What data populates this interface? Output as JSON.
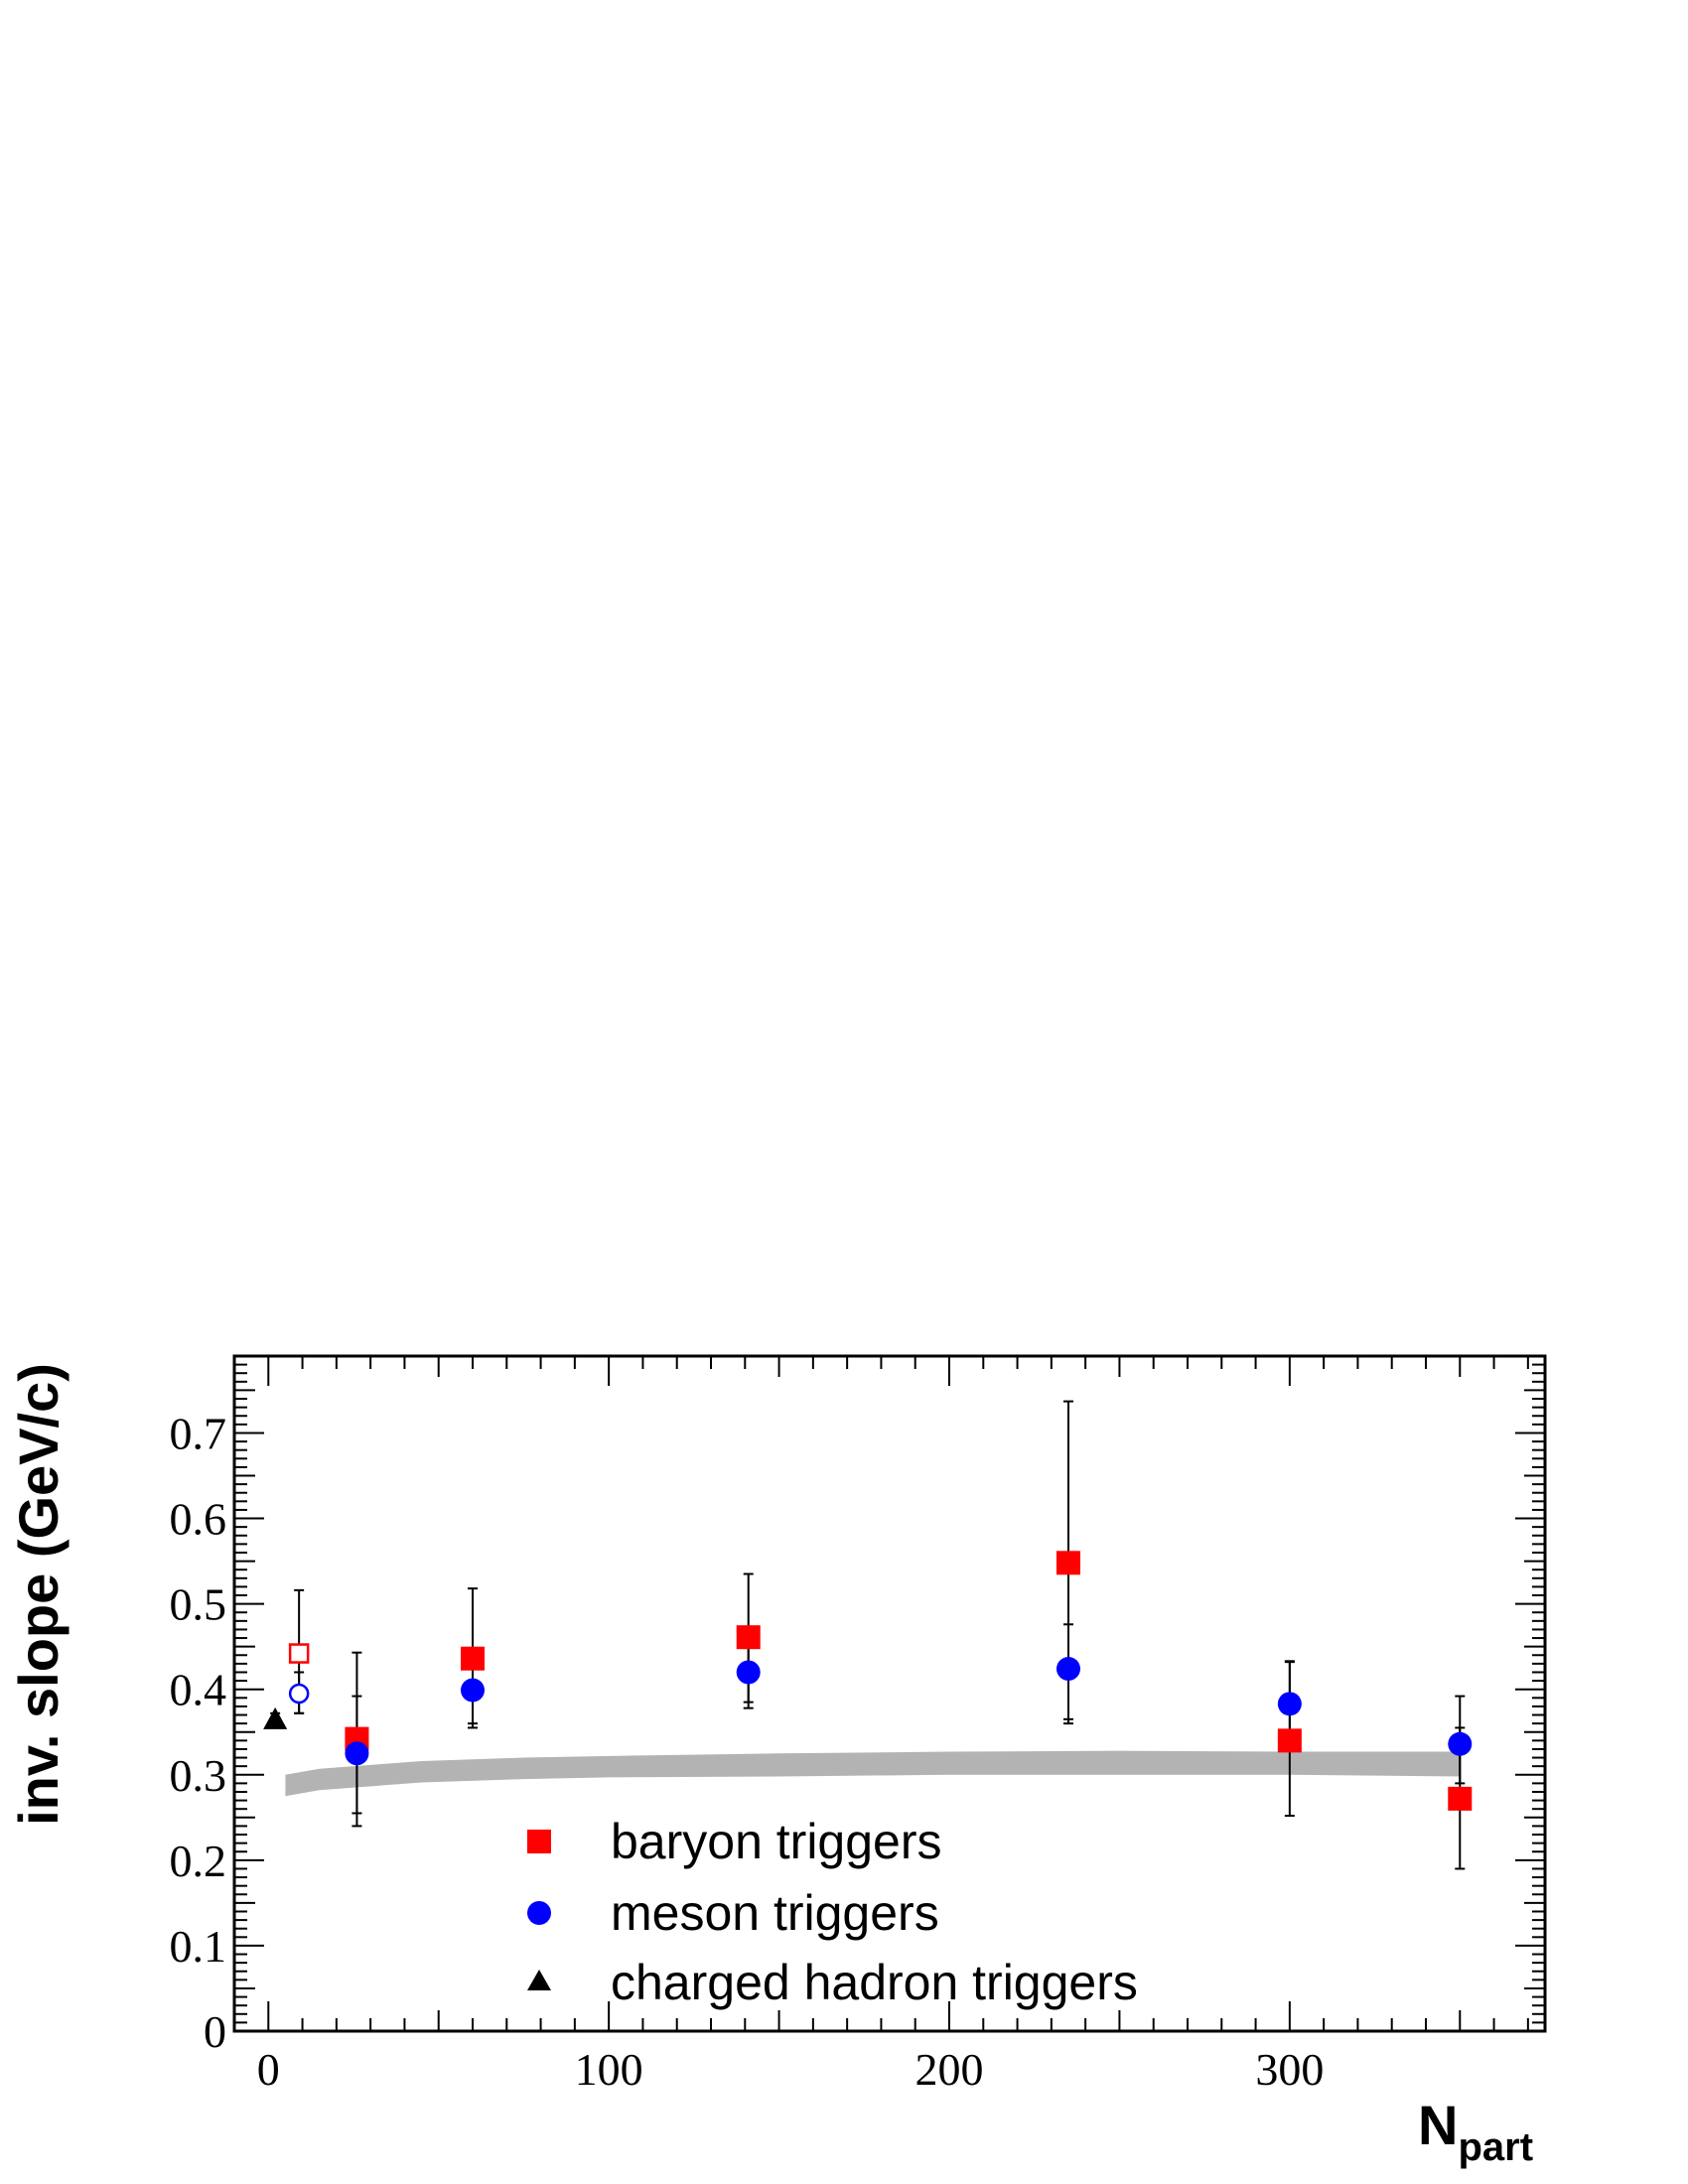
{
  "chart_data": {
    "type": "scatter",
    "title": "",
    "xlabel": "N",
    "xlabel_sub": "part",
    "ylabel": "inv. slope (GeV/c)",
    "xlim": [
      -10,
      375
    ],
    "ylim": [
      0,
      0.79
    ],
    "x_ticks": [
      0,
      100,
      200,
      300
    ],
    "y_ticks": [
      0,
      0.1,
      0.2,
      0.3,
      0.4,
      0.5,
      0.6,
      0.7
    ],
    "y_tick_labels": [
      "0",
      "0.1",
      "0.2",
      "0.3",
      "0.4",
      "0.5",
      "0.6",
      "0.7"
    ],
    "grid": false,
    "legend_position": "bottom-center",
    "colors": {
      "baryon": "#ff0000",
      "meson": "#0000ff",
      "charged": "#000000",
      "band": "#b3b3b3"
    },
    "band": {
      "x": [
        5,
        15,
        45,
        75,
        100,
        150,
        200,
        250,
        300,
        350
      ],
      "lower": [
        0.275,
        0.282,
        0.291,
        0.295,
        0.297,
        0.298,
        0.3,
        0.3,
        0.3,
        0.298
      ],
      "upper": [
        0.3,
        0.307,
        0.316,
        0.32,
        0.322,
        0.325,
        0.327,
        0.328,
        0.327,
        0.327
      ]
    },
    "series": [
      {
        "name": "baryon triggers",
        "marker": "square",
        "points": [
          {
            "x": 26,
            "y": 0.342,
            "lo": 0.255,
            "hi": 0.443
          },
          {
            "x": 60,
            "y": 0.436,
            "lo": 0.36,
            "hi": 0.518
          },
          {
            "x": 141,
            "y": 0.461,
            "lo": 0.385,
            "hi": 0.535
          },
          {
            "x": 235,
            "y": 0.548,
            "lo": 0.365,
            "hi": 0.737
          },
          {
            "x": 300,
            "y": 0.34,
            "lo": 0.252,
            "hi": 0.432
          },
          {
            "x": 350,
            "y": 0.272,
            "lo": 0.19,
            "hi": 0.355
          }
        ]
      },
      {
        "name": "meson triggers",
        "marker": "circle",
        "points": [
          {
            "x": 26,
            "y": 0.325,
            "lo": 0.24,
            "hi": 0.392
          },
          {
            "x": 60,
            "y": 0.399,
            "lo": 0.355,
            "hi": 0.433
          },
          {
            "x": 141,
            "y": 0.42,
            "lo": 0.378,
            "hi": 0.453
          },
          {
            "x": 235,
            "y": 0.424,
            "lo": 0.36,
            "hi": 0.476
          },
          {
            "x": 300,
            "y": 0.383,
            "lo": 0.34,
            "hi": 0.433
          },
          {
            "x": 350,
            "y": 0.336,
            "lo": 0.29,
            "hi": 0.392
          }
        ]
      },
      {
        "name": "charged hadron triggers",
        "marker": "triangle",
        "points": [
          {
            "x": 2,
            "y": 0.365,
            "lo": 0.358,
            "hi": 0.372
          }
        ]
      },
      {
        "name": "",
        "marker": "open-square",
        "color": "#ff0000",
        "points": [
          {
            "x": 9,
            "y": 0.442,
            "lo": 0.372,
            "hi": 0.516
          }
        ]
      },
      {
        "name": "",
        "marker": "open-circle",
        "color": "#0000ff",
        "points": [
          {
            "x": 9,
            "y": 0.395,
            "lo": 0.372,
            "hi": 0.42
          }
        ]
      }
    ]
  }
}
